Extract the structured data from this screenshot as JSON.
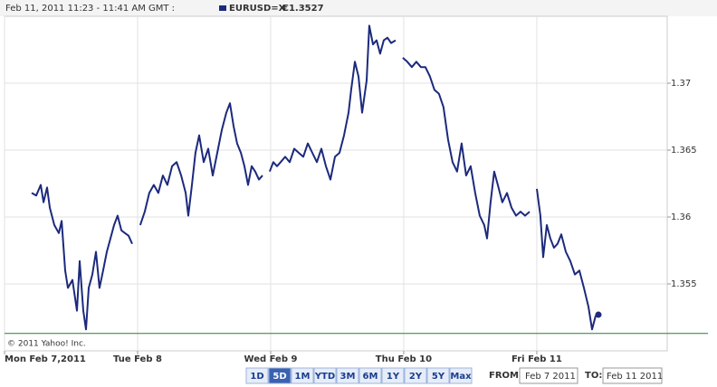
{
  "header": {
    "range": "Feb 11, 2011 11:23 - 11:41 AM GMT :"
  },
  "chart_data": {
    "type": "line",
    "x": [
      0.204,
      0.238,
      0.272,
      0.293,
      0.32,
      0.34,
      0.374,
      0.408,
      0.429,
      0.456,
      0.476,
      0.51,
      0.544,
      0.565,
      0.592,
      0.612,
      0.633,
      0.66,
      0.687,
      0.714,
      0.741,
      0.769,
      0.796,
      0.823,
      0.85,
      0.878,
      0.905,
      0.932,
      0.959,
      0.98,
      1.02,
      1.054,
      1.088,
      1.122,
      1.156,
      1.19,
      1.224,
      1.259,
      1.293,
      1.327,
      1.361,
      1.381,
      1.408,
      1.435,
      1.463,
      1.497,
      1.531,
      1.565,
      1.599,
      1.633,
      1.667,
      1.694,
      1.721,
      1.748,
      1.776,
      1.803,
      1.83,
      1.857,
      1.884,
      1.912,
      1.939,
      1.966,
      1.993,
      2.02,
      2.048,
      2.075,
      2.109,
      2.143,
      2.177,
      2.211,
      2.245,
      2.279,
      2.313,
      2.347,
      2.381,
      2.415,
      2.449,
      2.483,
      2.517,
      2.551,
      2.585,
      2.605,
      2.633,
      2.66,
      2.687,
      2.721,
      2.741,
      2.769,
      2.796,
      2.823,
      2.85,
      2.878,
      2.905,
      2.939,
      2.966,
      2.993,
      3.027,
      3.061,
      3.095,
      3.129,
      3.163,
      3.197,
      3.231,
      3.265,
      3.299,
      3.333,
      3.367,
      3.401,
      3.435,
      3.469,
      3.503,
      3.537,
      3.571,
      3.605,
      3.626,
      3.653,
      3.68,
      3.707,
      3.741,
      3.776,
      3.81,
      3.844,
      3.878,
      3.912,
      3.946,
      3.973,
      4.0,
      4.027,
      4.048,
      4.075,
      4.102,
      4.129,
      4.156,
      4.184,
      4.218,
      4.252,
      4.286,
      4.32,
      4.354,
      4.388,
      4.415,
      4.442,
      4.463
    ],
    "series": [
      {
        "name": "EURUSD=X",
        "color": "#1c2a7c",
        "last_label": "€1.3527",
        "values": [
          1.3618,
          1.3616,
          1.3624,
          1.3611,
          1.3622,
          1.3607,
          1.3594,
          1.3588,
          1.3597,
          1.356,
          1.3547,
          1.3553,
          1.353,
          1.3567,
          1.353,
          1.3516,
          1.3547,
          1.3557,
          1.3574,
          1.3547,
          1.356,
          1.3574,
          1.3584,
          1.3594,
          1.3601,
          1.359,
          1.3588,
          1.3586,
          1.358,
          null,
          1.3594,
          1.3604,
          1.3618,
          1.3624,
          1.3618,
          1.3631,
          1.3624,
          1.3638,
          1.3641,
          1.3631,
          1.3618,
          1.3601,
          1.3624,
          1.3648,
          1.3661,
          1.3641,
          1.3651,
          1.3631,
          1.3648,
          1.3665,
          1.3678,
          1.3685,
          1.3668,
          1.3655,
          1.3648,
          1.3638,
          1.3624,
          1.3638,
          1.3634,
          1.3628,
          1.3631,
          null,
          1.3634,
          1.3641,
          1.3638,
          1.3641,
          1.3645,
          1.3641,
          1.3651,
          1.3648,
          1.3645,
          1.3655,
          1.3648,
          1.3641,
          1.3651,
          1.3638,
          1.3628,
          1.3645,
          1.3648,
          1.3661,
          1.3678,
          1.3695,
          1.3716,
          1.3705,
          1.3678,
          1.3702,
          1.3743,
          1.3729,
          1.3732,
          1.3722,
          1.3732,
          1.3734,
          1.373,
          1.3732,
          null,
          1.3719,
          1.3716,
          1.3712,
          1.3716,
          1.3712,
          1.3712,
          1.3705,
          1.3695,
          1.3692,
          1.3682,
          1.3658,
          1.3641,
          1.3634,
          1.3655,
          1.3631,
          1.3638,
          1.3618,
          1.3601,
          1.3594,
          1.3584,
          1.3611,
          1.3634,
          1.3624,
          1.3611,
          1.3618,
          1.3607,
          1.3601,
          1.3604,
          1.3601,
          1.3604,
          null,
          1.3621,
          1.3601,
          1.357,
          1.3594,
          1.3584,
          1.3577,
          1.358,
          1.3587,
          1.3574,
          1.3567,
          1.3557,
          1.356,
          1.3547,
          1.3533,
          1.3516,
          1.3526,
          1.3527
        ]
      }
    ],
    "xlim": [
      0,
      4.98
    ],
    "xticks": [
      {
        "value": 0,
        "label": "Mon Feb 7,2011"
      },
      {
        "value": 1,
        "label": "Tue Feb 8"
      },
      {
        "value": 2,
        "label": "Wed Feb 9"
      },
      {
        "value": 3,
        "label": "Thu Feb 10"
      },
      {
        "value": 4,
        "label": "Fri Feb 11"
      }
    ],
    "ylim": [
      1.35,
      1.375
    ],
    "yticks": [
      1.355,
      1.36,
      1.365,
      1.37
    ],
    "grid": true,
    "baseline": 1.3513,
    "baseline_color": "#2e7d32",
    "copyright": "© 2011 Yahoo! Inc."
  },
  "controls": {
    "ranges": [
      "1D",
      "5D",
      "1M",
      "YTD",
      "3M",
      "6M",
      "1Y",
      "2Y",
      "5Y",
      "Max"
    ],
    "selected": 1,
    "from_label": "FROM:",
    "from": "Feb 7 2011",
    "to_label": "TO:",
    "to": "Feb 11 2011"
  }
}
